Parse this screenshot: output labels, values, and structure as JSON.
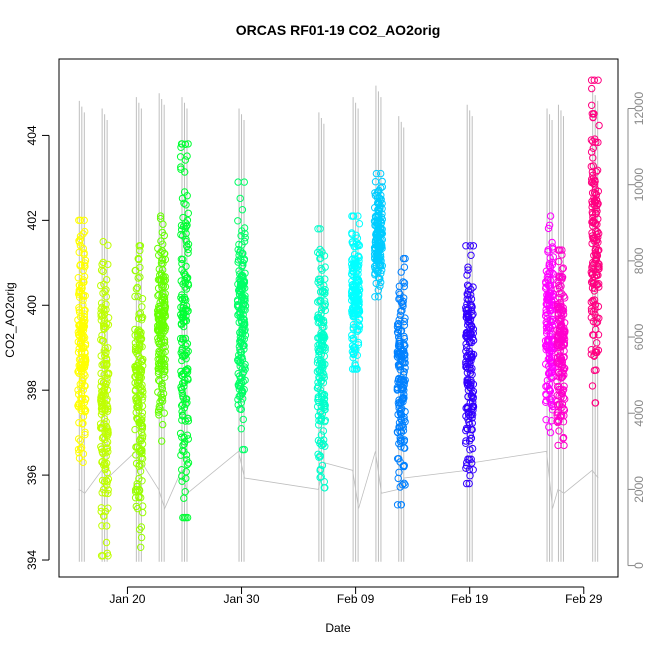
{
  "chart_data": {
    "type": "scatter",
    "title": "ORCAS RF01-19 CO2_AO2orig",
    "xlabel": "Date",
    "ylabel": "CO2_AO2orig",
    "x_ticks": [
      "Jan 20",
      "Jan 30",
      "Feb 09",
      "Feb 19",
      "Feb 29"
    ],
    "y_ticks": [
      394,
      396,
      398,
      400,
      402,
      404
    ],
    "y2_ticks": [
      0,
      2000,
      4000,
      6000,
      8000,
      10000,
      12000
    ],
    "xlim": [
      "Jan 14",
      "Mar 03"
    ],
    "ylim": [
      393.6,
      405.8
    ],
    "y2lim": [
      -300,
      13300
    ],
    "grid": false,
    "series": [
      {
        "date": "Jan 16",
        "ymin": 396.3,
        "ymax": 402.0,
        "color": "#FFFF00",
        "gray_max": 12200,
        "gray_min": 100
      },
      {
        "date": "Jan 18",
        "ymin": 394.1,
        "ymax": 401.5,
        "color": "#BFFF00",
        "gray_max": 12000,
        "gray_min": 100
      },
      {
        "date": "Jan 21",
        "ymin": 394.3,
        "ymax": 401.4,
        "color": "#99FF00",
        "gray_max": 12300,
        "gray_min": 100
      },
      {
        "date": "Jan 23",
        "ymin": 396.8,
        "ymax": 402.1,
        "color": "#66FF00",
        "gray_max": 12400,
        "gray_min": 100
      },
      {
        "date": "Jan 25",
        "ymin": 395.0,
        "ymax": 403.8,
        "color": "#00FF33",
        "gray_max": 12300,
        "gray_min": 100
      },
      {
        "date": "Jan 30",
        "ymin": 396.6,
        "ymax": 402.9,
        "color": "#00FF66",
        "gray_max": 12000,
        "gray_min": 100
      },
      {
        "date": "Feb 06",
        "ymin": 395.7,
        "ymax": 401.8,
        "color": "#00FFCC",
        "gray_max": 11900,
        "gray_min": 100
      },
      {
        "date": "Feb 09",
        "ymin": 398.5,
        "ymax": 402.1,
        "color": "#00FFFF",
        "gray_max": 12300,
        "gray_min": 100
      },
      {
        "date": "Feb 11",
        "ymin": 400.2,
        "ymax": 403.1,
        "color": "#00CCFF",
        "gray_max": 12600,
        "gray_min": 100
      },
      {
        "date": "Feb 13",
        "ymin": 395.3,
        "ymax": 401.1,
        "color": "#0080FF",
        "gray_max": 11800,
        "gray_min": 100
      },
      {
        "date": "Feb 19",
        "ymin": 395.8,
        "ymax": 401.4,
        "color": "#3300FF",
        "gray_max": 12100,
        "gray_min": 100
      },
      {
        "date": "Feb 26",
        "ymin": 397.0,
        "ymax": 402.1,
        "color": "#FF00FF",
        "gray_max": 12000,
        "gray_min": 100
      },
      {
        "date": "Feb 27",
        "ymin": 396.7,
        "ymax": 401.3,
        "color": "#FF00CC",
        "gray_max": 12100,
        "gray_min": 100
      },
      {
        "date": "Mar 01",
        "ymin": 397.7,
        "ymax": 405.3,
        "color": "#FF0080",
        "gray_max": 12500,
        "gray_min": 100
      }
    ],
    "connector_line_color": "#BEBEBE"
  }
}
